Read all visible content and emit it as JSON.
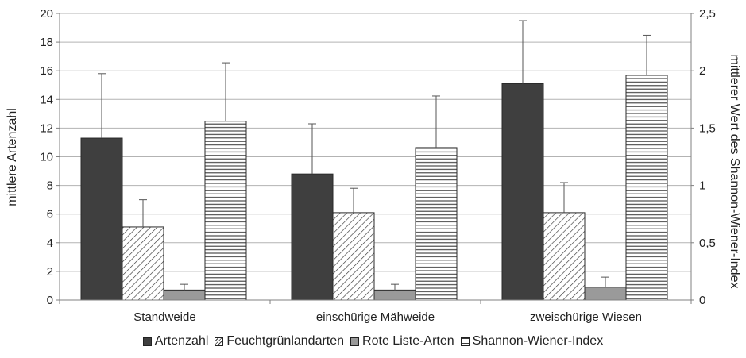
{
  "chart_data": {
    "type": "bar",
    "categories": [
      "Standweide",
      "einschürige Mähweide",
      "zweischürige Wiesen"
    ],
    "ylabel_left": "mittlere Artenzahl",
    "ylabel_right": "mittlerer Wert des Shannon-Wiener-Index",
    "ylim_left": [
      0,
      20
    ],
    "ylim_right": [
      0,
      2.5
    ],
    "yticks_left": [
      "0",
      "2",
      "4",
      "6",
      "8",
      "10",
      "12",
      "14",
      "16",
      "18",
      "20"
    ],
    "yticks_right": [
      "0",
      "0,5",
      "1",
      "1,5",
      "2",
      "2,5"
    ],
    "grid": true,
    "legend_position": "bottom",
    "series": [
      {
        "name": "Artenzahl",
        "axis": "left",
        "values": [
          11.3,
          8.8,
          15.1
        ],
        "errors": [
          4.5,
          3.5,
          4.4
        ],
        "color": "#3f3f3f",
        "pattern": "solid"
      },
      {
        "name": "Feuchtgrünlandarten",
        "axis": "left",
        "values": [
          5.1,
          6.1,
          6.1
        ],
        "errors": [
          1.9,
          1.7,
          2.1
        ],
        "color": "#ffffff",
        "pattern": "diagonal"
      },
      {
        "name": "Rote Liste-Arten",
        "axis": "left",
        "values": [
          0.7,
          0.7,
          0.9
        ],
        "errors": [
          0.4,
          0.4,
          0.7
        ],
        "color": "#9a9a9a",
        "pattern": "solid"
      },
      {
        "name": "Shannon-Wiener-Index",
        "axis": "right",
        "values": [
          1.56,
          1.33,
          1.96
        ],
        "errors": [
          0.51,
          0.45,
          0.35
        ],
        "color": "#ffffff",
        "pattern": "horizontal"
      }
    ]
  }
}
